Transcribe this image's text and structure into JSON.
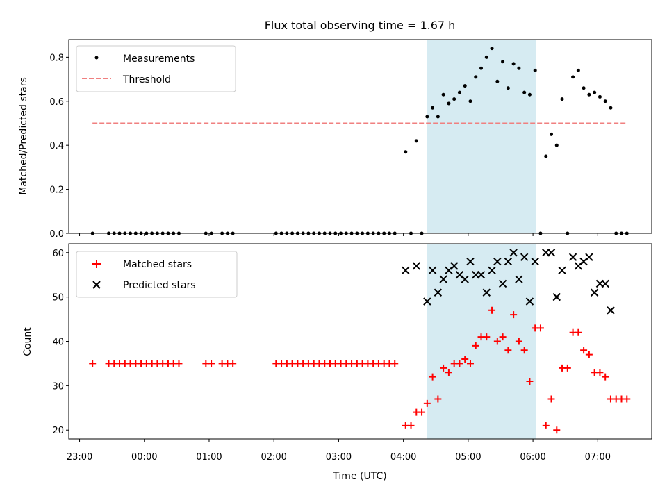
{
  "chart_data": [
    {
      "type": "scatter",
      "title": "Flux total observing time = 1.67 h",
      "xlabel": "",
      "ylabel": "Matched/Predicted stars",
      "xlim": [
        "22:50",
        "07:50"
      ],
      "ylim": [
        0,
        0.88
      ],
      "yticks": [
        "0.0",
        "0.2",
        "0.4",
        "0.6",
        "0.8"
      ],
      "shaded_span": [
        "04:22",
        "06:03"
      ],
      "shade_color": "#add8e6",
      "legend_position": "upper-left",
      "series": [
        {
          "name": "Measurements",
          "marker": "dot",
          "color": "#000000",
          "points": [
            [
              "23:12",
              0
            ],
            [
              "23:27",
              0
            ],
            [
              "23:32",
              0
            ],
            [
              "23:37",
              0
            ],
            [
              "23:42",
              0
            ],
            [
              "23:47",
              0
            ],
            [
              "23:52",
              0
            ],
            [
              "23:57",
              0
            ],
            [
              "00:02",
              0
            ],
            [
              "00:07",
              0
            ],
            [
              "00:12",
              0
            ],
            [
              "00:17",
              0
            ],
            [
              "00:22",
              0
            ],
            [
              "00:27",
              0
            ],
            [
              "00:32",
              0
            ],
            [
              "00:57",
              0
            ],
            [
              "01:02",
              0
            ],
            [
              "01:12",
              0
            ],
            [
              "01:17",
              0
            ],
            [
              "01:22",
              0
            ],
            [
              "02:02",
              0
            ],
            [
              "02:07",
              0
            ],
            [
              "02:12",
              0
            ],
            [
              "02:17",
              0
            ],
            [
              "02:22",
              0
            ],
            [
              "02:27",
              0
            ],
            [
              "02:32",
              0
            ],
            [
              "02:37",
              0
            ],
            [
              "02:42",
              0
            ],
            [
              "02:47",
              0
            ],
            [
              "02:52",
              0
            ],
            [
              "02:57",
              0
            ],
            [
              "03:02",
              0
            ],
            [
              "03:07",
              0
            ],
            [
              "03:12",
              0
            ],
            [
              "03:17",
              0
            ],
            [
              "03:22",
              0
            ],
            [
              "03:27",
              0
            ],
            [
              "03:32",
              0
            ],
            [
              "03:37",
              0
            ],
            [
              "03:42",
              0
            ],
            [
              "03:47",
              0
            ],
            [
              "03:52",
              0
            ],
            [
              "04:02",
              0.37
            ],
            [
              "04:07",
              0
            ],
            [
              "04:12",
              0.42
            ],
            [
              "04:17",
              0
            ],
            [
              "04:22",
              0.53
            ],
            [
              "04:27",
              0.57
            ],
            [
              "04:32",
              0.53
            ],
            [
              "04:37",
              0.63
            ],
            [
              "04:42",
              0.59
            ],
            [
              "04:47",
              0.61
            ],
            [
              "04:52",
              0.64
            ],
            [
              "04:57",
              0.67
            ],
            [
              "05:02",
              0.6
            ],
            [
              "05:07",
              0.71
            ],
            [
              "05:12",
              0.75
            ],
            [
              "05:17",
              0.8
            ],
            [
              "05:22",
              0.84
            ],
            [
              "05:27",
              0.69
            ],
            [
              "05:32",
              0.78
            ],
            [
              "05:37",
              0.66
            ],
            [
              "05:42",
              0.77
            ],
            [
              "05:47",
              0.75
            ],
            [
              "05:52",
              0.64
            ],
            [
              "05:57",
              0.63
            ],
            [
              "06:02",
              0.74
            ],
            [
              "06:07",
              0
            ],
            [
              "06:12",
              0.35
            ],
            [
              "06:17",
              0.45
            ],
            [
              "06:22",
              0.4
            ],
            [
              "06:27",
              0.61
            ],
            [
              "06:32",
              0
            ],
            [
              "06:37",
              0.71
            ],
            [
              "06:42",
              0.74
            ],
            [
              "06:47",
              0.66
            ],
            [
              "06:52",
              0.63
            ],
            [
              "06:57",
              0.64
            ],
            [
              "07:02",
              0.62
            ],
            [
              "07:07",
              0.6
            ],
            [
              "07:12",
              0.57
            ],
            [
              "07:17",
              0
            ],
            [
              "07:22",
              0
            ],
            [
              "07:27",
              0
            ]
          ]
        },
        {
          "name": "Threshold",
          "marker": "dashed-line",
          "color": "#f08080",
          "points": [
            [
              "23:12",
              0.5
            ],
            [
              "07:27",
              0.5
            ]
          ]
        }
      ]
    },
    {
      "type": "scatter",
      "title": "",
      "xlabel": "Time (UTC)",
      "ylabel": "Count",
      "xlim": [
        "22:50",
        "07:50"
      ],
      "ylim": [
        18,
        62
      ],
      "yticks": [
        "20",
        "30",
        "40",
        "50",
        "60"
      ],
      "xticks": [
        "23:00",
        "00:00",
        "01:00",
        "02:00",
        "03:00",
        "04:00",
        "05:00",
        "06:00",
        "07:00"
      ],
      "shaded_span": [
        "04:22",
        "06:03"
      ],
      "shade_color": "#add8e6",
      "legend_position": "upper-left",
      "series": [
        {
          "name": "Matched stars",
          "marker": "plus",
          "color": "#ff0000",
          "points": [
            [
              "23:12",
              35
            ],
            [
              "23:27",
              35
            ],
            [
              "23:32",
              35
            ],
            [
              "23:37",
              35
            ],
            [
              "23:42",
              35
            ],
            [
              "23:47",
              35
            ],
            [
              "23:52",
              35
            ],
            [
              "23:57",
              35
            ],
            [
              "00:02",
              35
            ],
            [
              "00:07",
              35
            ],
            [
              "00:12",
              35
            ],
            [
              "00:17",
              35
            ],
            [
              "00:22",
              35
            ],
            [
              "00:27",
              35
            ],
            [
              "00:32",
              35
            ],
            [
              "00:57",
              35
            ],
            [
              "01:02",
              35
            ],
            [
              "01:12",
              35
            ],
            [
              "01:17",
              35
            ],
            [
              "01:22",
              35
            ],
            [
              "02:02",
              35
            ],
            [
              "02:07",
              35
            ],
            [
              "02:12",
              35
            ],
            [
              "02:17",
              35
            ],
            [
              "02:22",
              35
            ],
            [
              "02:27",
              35
            ],
            [
              "02:32",
              35
            ],
            [
              "02:37",
              35
            ],
            [
              "02:42",
              35
            ],
            [
              "02:47",
              35
            ],
            [
              "02:52",
              35
            ],
            [
              "02:57",
              35
            ],
            [
              "03:02",
              35
            ],
            [
              "03:07",
              35
            ],
            [
              "03:12",
              35
            ],
            [
              "03:17",
              35
            ],
            [
              "03:22",
              35
            ],
            [
              "03:27",
              35
            ],
            [
              "03:32",
              35
            ],
            [
              "03:37",
              35
            ],
            [
              "03:42",
              35
            ],
            [
              "03:47",
              35
            ],
            [
              "03:52",
              35
            ],
            [
              "04:02",
              21
            ],
            [
              "04:07",
              21
            ],
            [
              "04:12",
              24
            ],
            [
              "04:17",
              24
            ],
            [
              "04:22",
              26
            ],
            [
              "04:27",
              32
            ],
            [
              "04:32",
              27
            ],
            [
              "04:37",
              34
            ],
            [
              "04:42",
              33
            ],
            [
              "04:47",
              35
            ],
            [
              "04:52",
              35
            ],
            [
              "04:57",
              36
            ],
            [
              "05:02",
              35
            ],
            [
              "05:07",
              39
            ],
            [
              "05:12",
              41
            ],
            [
              "05:17",
              41
            ],
            [
              "05:22",
              47
            ],
            [
              "05:27",
              40
            ],
            [
              "05:32",
              41
            ],
            [
              "05:37",
              38
            ],
            [
              "05:42",
              46
            ],
            [
              "05:47",
              40
            ],
            [
              "05:52",
              38
            ],
            [
              "05:57",
              31
            ],
            [
              "06:02",
              43
            ],
            [
              "06:07",
              43
            ],
            [
              "06:12",
              21
            ],
            [
              "06:17",
              27
            ],
            [
              "06:22",
              20
            ],
            [
              "06:27",
              34
            ],
            [
              "06:32",
              34
            ],
            [
              "06:37",
              42
            ],
            [
              "06:42",
              42
            ],
            [
              "06:47",
              38
            ],
            [
              "06:52",
              37
            ],
            [
              "06:57",
              33
            ],
            [
              "07:02",
              33
            ],
            [
              "07:07",
              32
            ],
            [
              "07:12",
              27
            ],
            [
              "07:17",
              27
            ],
            [
              "07:22",
              27
            ],
            [
              "07:27",
              27
            ]
          ]
        },
        {
          "name": "Predicted stars",
          "marker": "x",
          "color": "#000000",
          "points": [
            [
              "04:02",
              56
            ],
            [
              "04:12",
              57
            ],
            [
              "04:22",
              49
            ],
            [
              "04:27",
              56
            ],
            [
              "04:32",
              51
            ],
            [
              "04:37",
              54
            ],
            [
              "04:42",
              56
            ],
            [
              "04:47",
              57
            ],
            [
              "04:52",
              55
            ],
            [
              "04:57",
              54
            ],
            [
              "05:02",
              58
            ],
            [
              "05:07",
              55
            ],
            [
              "05:12",
              55
            ],
            [
              "05:17",
              51
            ],
            [
              "05:22",
              56
            ],
            [
              "05:27",
              58
            ],
            [
              "05:32",
              53
            ],
            [
              "05:37",
              58
            ],
            [
              "05:42",
              60
            ],
            [
              "05:47",
              54
            ],
            [
              "05:52",
              59
            ],
            [
              "05:57",
              49
            ],
            [
              "06:02",
              58
            ],
            [
              "06:12",
              60
            ],
            [
              "06:17",
              60
            ],
            [
              "06:22",
              50
            ],
            [
              "06:27",
              56
            ],
            [
              "06:37",
              59
            ],
            [
              "06:42",
              57
            ],
            [
              "06:47",
              58
            ],
            [
              "06:52",
              59
            ],
            [
              "06:57",
              51
            ],
            [
              "07:02",
              53
            ],
            [
              "07:07",
              53
            ],
            [
              "07:12",
              47
            ]
          ]
        }
      ]
    }
  ]
}
